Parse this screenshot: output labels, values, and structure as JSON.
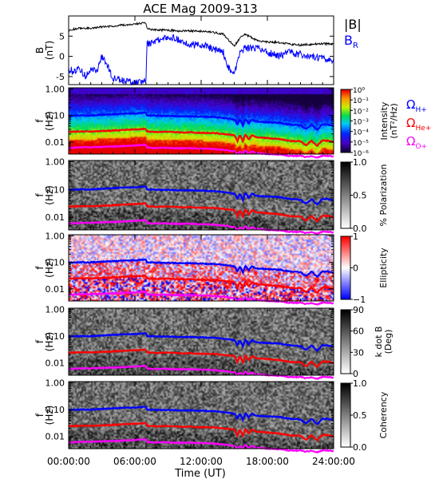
{
  "chart_data": {
    "title": "ACE Mag 2009-313",
    "xlabel": "Time (UT)",
    "x_ticks": [
      "00:00:00",
      "06:00:00",
      "12:00:00",
      "18:00:00",
      "24:00:00"
    ],
    "x_range_hours": [
      0,
      24
    ],
    "panels": [
      {
        "type": "line",
        "ylabel": "B",
        "yunit": "(nT)",
        "ylim": [
          -7,
          10
        ],
        "yticks": [
          "5",
          "0",
          "-5"
        ],
        "legend": [
          {
            "label": "|B|",
            "color": "#000000"
          },
          {
            "label": "B",
            "sub": "R",
            "color": "#0000ff"
          }
        ],
        "series": [
          {
            "name": "|B|",
            "color": "#000000",
            "x": [
              0,
              1,
              2,
              3,
              4,
              5,
              6,
              6.5,
              7,
              7.1,
              8,
              9,
              10,
              11,
              12,
              13,
              14,
              14.5,
              15,
              15.5,
              16,
              17,
              18,
              19,
              20,
              21,
              22,
              23,
              24
            ],
            "y": [
              6.5,
              7,
              7,
              7.3,
              7.5,
              7.8,
              8,
              8.2,
              8.3,
              6.8,
              6.5,
              6.5,
              6.3,
              6.3,
              6.2,
              6,
              5.5,
              4,
              2.5,
              4.5,
              5.5,
              4,
              3.5,
              3.5,
              3,
              2.8,
              3,
              3.2,
              3
            ]
          },
          {
            "name": "B_R",
            "color": "#0000ff",
            "x": [
              0,
              0.5,
              1,
              1.5,
              2,
              2.5,
              3,
              3.5,
              4,
              5,
              6,
              7,
              7.1,
              8,
              9,
              10,
              11,
              12,
              13,
              14,
              14.5,
              15,
              15.5,
              16,
              17,
              18,
              19,
              20,
              21,
              22,
              23,
              24
            ],
            "y": [
              -3,
              -4,
              -3,
              -5,
              -3,
              -4,
              0,
              -2,
              -5.5,
              -6,
              -6.5,
              -6,
              3,
              4,
              5,
              4,
              3,
              3,
              2,
              1,
              -3,
              -4.5,
              1,
              2,
              2,
              1,
              0,
              1,
              0.5,
              0,
              -0.5,
              -1
            ]
          }
        ]
      },
      {
        "type": "heatmap",
        "ylabel": "f",
        "yunit": "(Hz)",
        "ylim_log": [
          0.0035,
          1.1
        ],
        "yticks": [
          "1.00",
          "0.10",
          "0.01"
        ],
        "colormap": "rainbow",
        "colorbar": {
          "label": "Intensity",
          "unit": "(nT²/Hz)",
          "scale": "log",
          "range": [
            1e-06,
            1
          ],
          "ticks": [
            "10⁰",
            "10⁻¹",
            "10⁻²",
            "10⁻³",
            "10⁻⁴",
            "10⁻⁵",
            "10⁻⁶"
          ]
        },
        "legend": [
          {
            "label": "Ω",
            "sub": "H+",
            "color": "#0000ff"
          },
          {
            "label": "Ω",
            "sub": "He+",
            "color": "#ff0000"
          },
          {
            "label": "Ω",
            "sub": "O+",
            "color": "#ff00ff"
          }
        ]
      },
      {
        "type": "heatmap",
        "ylabel": "f",
        "yunit": "(Hz)",
        "ylim_log": [
          0.0035,
          1.1
        ],
        "yticks": [
          "1.00",
          "0.10",
          "0.01"
        ],
        "colormap": "gray",
        "colorbar": {
          "label": "% Polarization",
          "range": [
            0,
            1
          ],
          "ticks": [
            "1.0",
            "0.5",
            "0.0"
          ]
        }
      },
      {
        "type": "heatmap",
        "ylabel": "f",
        "yunit": "(Hz)",
        "ylim_log": [
          0.0035,
          1.1
        ],
        "yticks": [
          "1.00",
          "0.10",
          "0.01"
        ],
        "colormap": "bwr",
        "colorbar": {
          "label": "Ellipticity",
          "range": [
            -1,
            1
          ],
          "ticks": [
            "1",
            "0",
            "−1"
          ]
        }
      },
      {
        "type": "heatmap",
        "ylabel": "f",
        "yunit": "(Hz)",
        "ylim_log": [
          0.0035,
          1.1
        ],
        "yticks": [
          "1.00",
          "0.10",
          "0.01"
        ],
        "colormap": "gray",
        "colorbar": {
          "label": "k dot B",
          "unit": "(Deg)",
          "range": [
            0,
            90
          ],
          "ticks": [
            "90",
            "60",
            "30",
            "0"
          ]
        }
      },
      {
        "type": "heatmap",
        "ylabel": "f",
        "yunit": "(Hz)",
        "ylim_log": [
          0.0035,
          1.1
        ],
        "yticks": [
          "1.00",
          "0.10",
          "0.01"
        ],
        "colormap": "gray",
        "colorbar": {
          "label": "Coherency",
          "range": [
            0,
            1
          ],
          "ticks": [
            "1.0",
            "0.5",
            "0.0"
          ]
        }
      }
    ],
    "gyrofrequency_lines": [
      {
        "name": "Ω_H+",
        "color": "#0000ff",
        "x": [
          0,
          1,
          2,
          3,
          4,
          5,
          6,
          7,
          7.1,
          8,
          9,
          10,
          11,
          12,
          13,
          14,
          15,
          15.3,
          15.5,
          15.8,
          16,
          16.3,
          16.6,
          17,
          18,
          19,
          19.5,
          20,
          21,
          21.5,
          22,
          22.5,
          23,
          23.5,
          24
        ],
        "y": [
          0.097,
          0.1,
          0.1,
          0.105,
          0.11,
          0.115,
          0.12,
          0.125,
          0.1,
          0.097,
          0.097,
          0.093,
          0.093,
          0.09,
          0.087,
          0.08,
          0.07,
          0.045,
          0.07,
          0.04,
          0.075,
          0.05,
          0.07,
          0.06,
          0.055,
          0.053,
          0.05,
          0.045,
          0.042,
          0.03,
          0.044,
          0.028,
          0.046,
          0.045,
          0.04
        ]
      },
      {
        "name": "Ω_He+",
        "color": "#ff0000",
        "x": [
          0,
          1,
          2,
          3,
          4,
          5,
          6,
          7,
          7.1,
          8,
          9,
          10,
          11,
          12,
          13,
          14,
          15,
          15.3,
          15.5,
          15.8,
          16,
          16.3,
          16.6,
          17,
          18,
          19,
          19.5,
          20,
          21,
          21.5,
          22,
          22.5,
          23,
          23.5,
          24
        ],
        "y": [
          0.024,
          0.025,
          0.025,
          0.026,
          0.027,
          0.028,
          0.03,
          0.031,
          0.025,
          0.024,
          0.024,
          0.023,
          0.023,
          0.022,
          0.022,
          0.02,
          0.018,
          0.011,
          0.018,
          0.01,
          0.019,
          0.012,
          0.018,
          0.015,
          0.014,
          0.013,
          0.012,
          0.011,
          0.0105,
          0.0075,
          0.011,
          0.007,
          0.0115,
          0.011,
          0.01
        ]
      },
      {
        "name": "Ω_O+",
        "color": "#ff00ff",
        "x": [
          0,
          1,
          2,
          3,
          4,
          5,
          6,
          7,
          7.1,
          8,
          9,
          10,
          11,
          12,
          13,
          14,
          15,
          15.3,
          15.5,
          15.8,
          16,
          16.3,
          16.6,
          17,
          18,
          19,
          19.5,
          20,
          21,
          21.5,
          22,
          22.5,
          23,
          23.5,
          24
        ],
        "y": [
          0.006,
          0.0062,
          0.0063,
          0.0065,
          0.0068,
          0.007,
          0.0075,
          0.0078,
          0.0062,
          0.006,
          0.006,
          0.0058,
          0.0058,
          0.0056,
          0.0055,
          0.005,
          0.0045,
          0.0035,
          0.0045,
          0.0035,
          0.0048,
          0.0037,
          0.0045,
          0.0038,
          0.0035,
          0.0034,
          0.0032,
          0.003,
          0.003,
          0.0027,
          0.003,
          0.0026,
          0.003,
          0.003,
          0.0028
        ]
      }
    ]
  }
}
